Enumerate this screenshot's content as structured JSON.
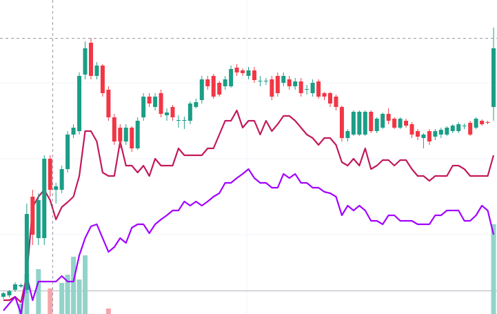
{
  "chart_data": {
    "type": "candlestick",
    "ylim": [
      0,
      455
    ],
    "up_color": "#1a9e86",
    "down_color": "#f23645",
    "open": [
      25,
      27,
      35,
      40,
      35,
      170,
      110,
      110,
      225,
      180,
      180,
      210,
      260,
      265,
      347,
      393,
      345,
      360,
      325,
      285,
      270,
      250,
      270,
      240,
      285,
      315,
      300,
      320,
      288,
      300,
      280,
      280,
      280,
      300,
      310,
      340,
      345,
      335,
      330,
      330,
      357,
      353,
      345,
      353,
      337,
      337,
      340,
      345,
      335,
      340,
      330,
      337,
      325,
      320,
      337,
      320,
      320,
      315,
      300,
      255,
      260,
      260,
      260,
      293,
      265,
      270,
      290,
      283,
      270,
      280,
      275,
      265,
      255,
      265,
      257,
      260,
      260,
      265,
      265,
      272,
      277,
      270,
      280,
      278,
      300
    ],
    "high": [
      32,
      35,
      46,
      44,
      160,
      180,
      175,
      230,
      230,
      190,
      215,
      265,
      275,
      350,
      395,
      400,
      365,
      362,
      330,
      290,
      275,
      275,
      272,
      285,
      320,
      320,
      320,
      325,
      298,
      303,
      288,
      286,
      308,
      312,
      345,
      345,
      348,
      338,
      345,
      360,
      362,
      356,
      358,
      358,
      345,
      342,
      345,
      350,
      350,
      345,
      342,
      342,
      332,
      340,
      340,
      322,
      322,
      318,
      302,
      268,
      295,
      295,
      295,
      295,
      285,
      292,
      298,
      285,
      285,
      283,
      278,
      268,
      262,
      268,
      268,
      270,
      272,
      275,
      278,
      276,
      280,
      285,
      282,
      280,
      415
    ],
    "low": [
      22,
      24,
      32,
      38,
      30,
      100,
      100,
      100,
      170,
      160,
      175,
      205,
      255,
      260,
      340,
      340,
      340,
      315,
      280,
      245,
      240,
      245,
      235,
      238,
      280,
      300,
      295,
      285,
      280,
      280,
      270,
      268,
      275,
      298,
      305,
      325,
      312,
      315,
      325,
      328,
      345,
      345,
      340,
      335,
      330,
      332,
      310,
      315,
      330,
      325,
      325,
      315,
      318,
      315,
      312,
      310,
      300,
      295,
      250,
      250,
      258,
      258,
      258,
      262,
      262,
      268,
      275,
      268,
      268,
      270,
      255,
      252,
      240,
      245,
      252,
      255,
      258,
      262,
      262,
      268,
      258,
      268,
      273,
      275,
      280
    ],
    "close": [
      30,
      33,
      43,
      42,
      145,
      115,
      165,
      225,
      180,
      185,
      210,
      260,
      270,
      345,
      385,
      345,
      360,
      320,
      285,
      250,
      250,
      270,
      240,
      280,
      315,
      305,
      315,
      290,
      292,
      285,
      281,
      281,
      305,
      307,
      340,
      330,
      315,
      318,
      340,
      355,
      350,
      349,
      353,
      339,
      338,
      338,
      315,
      320,
      345,
      330,
      337,
      320,
      326,
      335,
      315,
      315,
      305,
      300,
      255,
      265,
      293,
      293,
      293,
      265,
      283,
      290,
      280,
      270,
      283,
      273,
      260,
      257,
      260,
      250,
      265,
      267,
      270,
      273,
      275,
      273,
      260,
      283,
      275,
      277,
      385
    ],
    "lines": [
      {
        "color": "#c2185b",
        "values": [
          20,
          20,
          25,
          17,
          55,
          155,
          170,
          180,
          165,
          137,
          155,
          162,
          170,
          200,
          265,
          265,
          250,
          205,
          200,
          200,
          250,
          215,
          215,
          205,
          215,
          200,
          225,
          215,
          215,
          215,
          240,
          230,
          230,
          230,
          230,
          240,
          240,
          260,
          280,
          280,
          295,
          270,
          280,
          280,
          260,
          280,
          265,
          275,
          287,
          287,
          280,
          270,
          260,
          255,
          245,
          255,
          255,
          245,
          220,
          215,
          225,
          215,
          240,
          210,
          215,
          223,
          223,
          215,
          223,
          223,
          210,
          200,
          200,
          193,
          200,
          200,
          200,
          215,
          215,
          210,
          200,
          200,
          200,
          200,
          230
        ]
      },
      {
        "color": "#a100ff",
        "values": [
          5,
          15,
          25,
          0,
          55,
          20,
          47,
          47,
          47,
          47,
          55,
          47,
          47,
          85,
          110,
          127,
          130,
          110,
          90,
          97,
          110,
          103,
          125,
          130,
          130,
          117,
          130,
          137,
          143,
          150,
          150,
          163,
          157,
          163,
          157,
          163,
          170,
          175,
          190,
          190,
          197,
          203,
          210,
          197,
          190,
          190,
          183,
          183,
          203,
          197,
          203,
          190,
          190,
          183,
          183,
          177,
          175,
          170,
          143,
          157,
          150,
          157,
          150,
          135,
          135,
          130,
          143,
          143,
          135,
          135,
          135,
          130,
          130,
          130,
          143,
          143,
          150,
          150,
          150,
          135,
          135,
          143,
          157,
          150,
          115
        ]
      }
    ],
    "volume": {
      "up_color": "#92d3ca",
      "down_color": "#f5a6ad",
      "values": [
        null,
        null,
        null,
        15,
        58,
        null,
        65,
        null,
        37,
        null,
        45,
        57,
        83,
        50,
        85,
        null,
        null,
        null,
        8,
        null,
        null,
        null,
        null,
        null,
        null,
        null,
        null,
        null,
        null,
        null,
        null,
        null,
        null,
        null,
        null,
        null,
        null,
        null,
        null,
        null,
        null,
        null,
        null,
        null,
        null,
        null,
        null,
        null,
        null,
        null,
        null,
        null,
        null,
        null,
        null,
        null,
        null,
        null,
        null,
        null,
        null,
        null,
        null,
        null,
        null,
        null,
        null,
        null,
        null,
        null,
        null,
        null,
        null,
        null,
        null,
        null,
        null,
        null,
        null,
        null,
        null,
        null,
        null,
        null,
        130
      ]
    }
  }
}
